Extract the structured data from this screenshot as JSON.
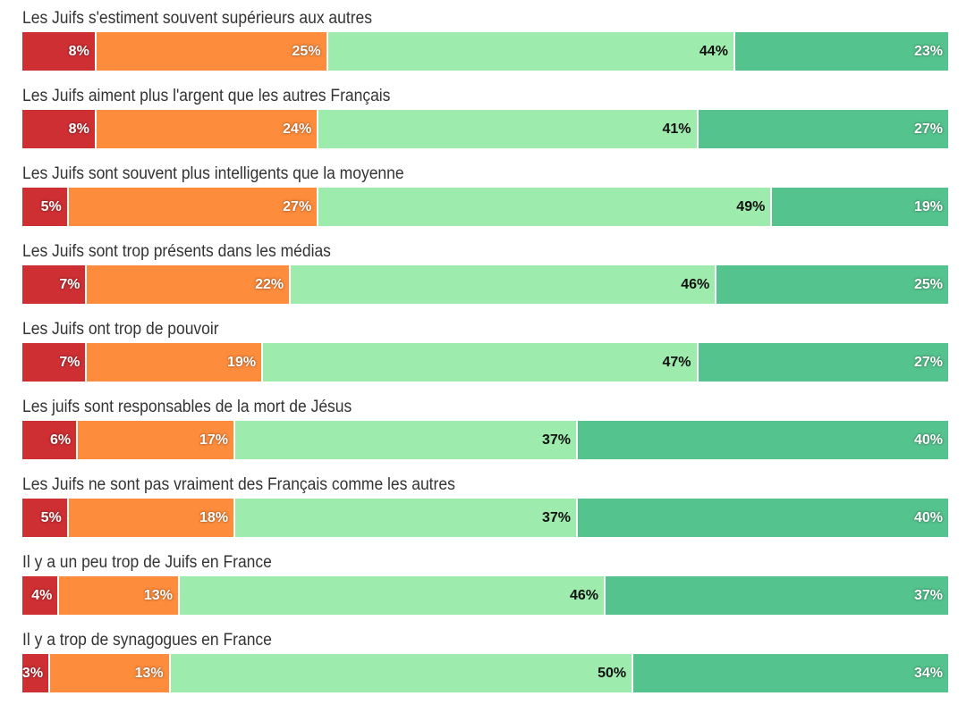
{
  "colors": [
    "#cd2f33",
    "#fd8c3c",
    "#9eecad",
    "#55c38e"
  ],
  "label_styles": [
    "light",
    "light",
    "dark",
    "light"
  ],
  "chart_data": {
    "type": "bar",
    "orientation": "horizontal",
    "stacked": true,
    "normalized": true,
    "categories": [
      "Les Juifs s'estiment souvent supérieurs aux autres",
      "Les Juifs aiment plus l'argent que les autres Français",
      "Les Juifs sont souvent plus intelligents que la moyenne",
      "Les Juifs sont trop présents dans les médias",
      "Les Juifs ont trop de pouvoir",
      "Les juifs sont responsables de la mort de Jésus",
      "Les Juifs ne sont pas vraiment des Français comme les autres",
      "Il y a un peu trop de Juifs en France",
      "Il y a trop de synagogues en France"
    ],
    "values": [
      [
        8,
        25,
        44,
        23
      ],
      [
        8,
        24,
        41,
        27
      ],
      [
        5,
        27,
        49,
        19
      ],
      [
        7,
        22,
        46,
        25
      ],
      [
        7,
        19,
        47,
        27
      ],
      [
        6,
        17,
        37,
        40
      ],
      [
        5,
        18,
        37,
        40
      ],
      [
        4,
        13,
        46,
        37
      ],
      [
        3,
        13,
        50,
        34
      ]
    ],
    "value_suffix": "%",
    "title": "",
    "xlabel": "",
    "ylabel": "",
    "legend": "none",
    "grid": false
  }
}
